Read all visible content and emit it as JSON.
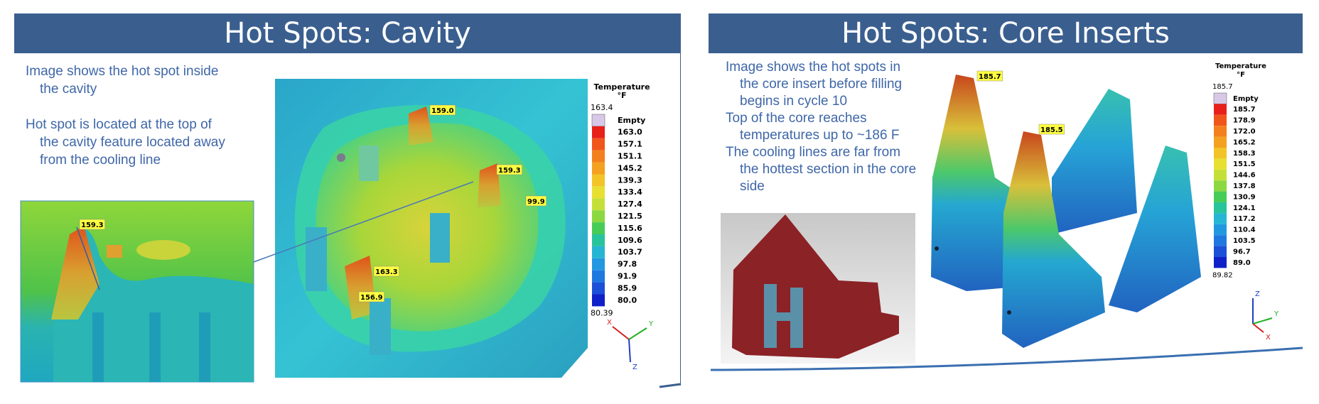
{
  "slides": [
    {
      "title": "Hot Spots: Cavity",
      "bullets": [
        [
          "Image shows the hot spot inside",
          "the cavity"
        ],
        [
          "Hot spot is located at the top of",
          "the cavity feature located away",
          "from the cooling line"
        ]
      ],
      "legend": {
        "title": "Temperature",
        "unit": "°F",
        "max": "163.4",
        "empty": "Empty",
        "levels": [
          "163.0",
          "157.1",
          "151.1",
          "145.2",
          "139.3",
          "133.4",
          "127.4",
          "121.5",
          "115.6",
          "109.6",
          "103.7",
          "97.8",
          "91.9",
          "85.9",
          "80.0"
        ],
        "min": "80.39"
      },
      "callouts": [
        "159.0",
        "159.3",
        "99.9",
        "163.3",
        "156.9"
      ],
      "inset_callout": "159.3",
      "axes": [
        "X",
        "Y",
        "Z"
      ]
    },
    {
      "title": "Hot Spots: Core Inserts",
      "bullets": [
        [
          "Image shows the hot spots in",
          "the core insert before filling",
          "begins in cycle 10"
        ],
        [
          "Top of the core reaches",
          "temperatures up to ~186 F"
        ],
        [
          "The cooling lines are far from",
          "the hottest section in the core",
          "side"
        ]
      ],
      "legend": {
        "title": "Temperature",
        "unit": "°F",
        "max": "185.7",
        "empty": "Empty",
        "levels": [
          "185.7",
          "178.9",
          "172.0",
          "165.2",
          "158.3",
          "151.5",
          "144.6",
          "137.8",
          "130.9",
          "124.1",
          "117.2",
          "110.4",
          "103.5",
          "96.7",
          "89.0"
        ],
        "min": "89.82"
      },
      "callouts": [
        "185.7",
        "185.5"
      ],
      "axes": [
        "Z",
        "Y",
        "X"
      ]
    }
  ]
}
